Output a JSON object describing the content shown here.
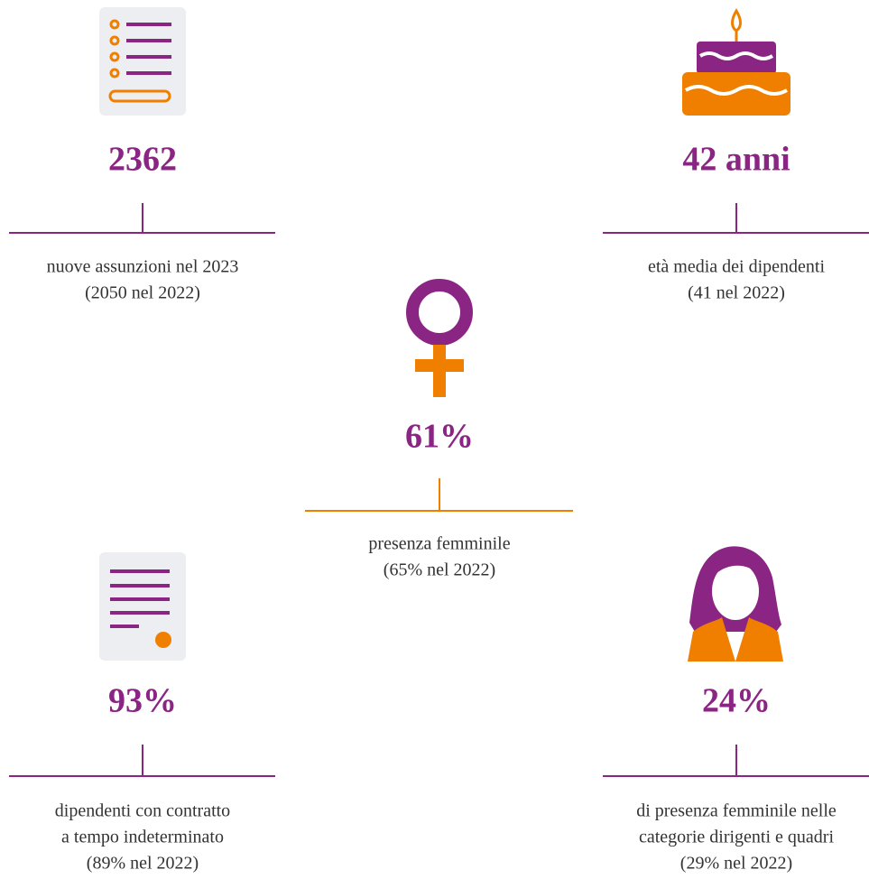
{
  "items": [
    {
      "value": "2362",
      "description": [
        "nuove assunzioni nel 2023",
        "(2050 nel 2022)"
      ]
    },
    {
      "value": "42 anni",
      "description": [
        "età media dei dipendenti",
        "(41 nel 2022)"
      ]
    },
    {
      "value": "61%",
      "description": [
        "presenza femminile",
        "(65% nel 2022)"
      ]
    },
    {
      "value": "93%",
      "description": [
        "dipendenti con contratto",
        "a tempo indeterminato",
        "(89% nel 2022)"
      ]
    },
    {
      "value": "24%",
      "description": [
        "di presenza femminile nelle",
        "categorie dirigenti e quadri",
        "(29% nel 2022)"
      ]
    }
  ]
}
